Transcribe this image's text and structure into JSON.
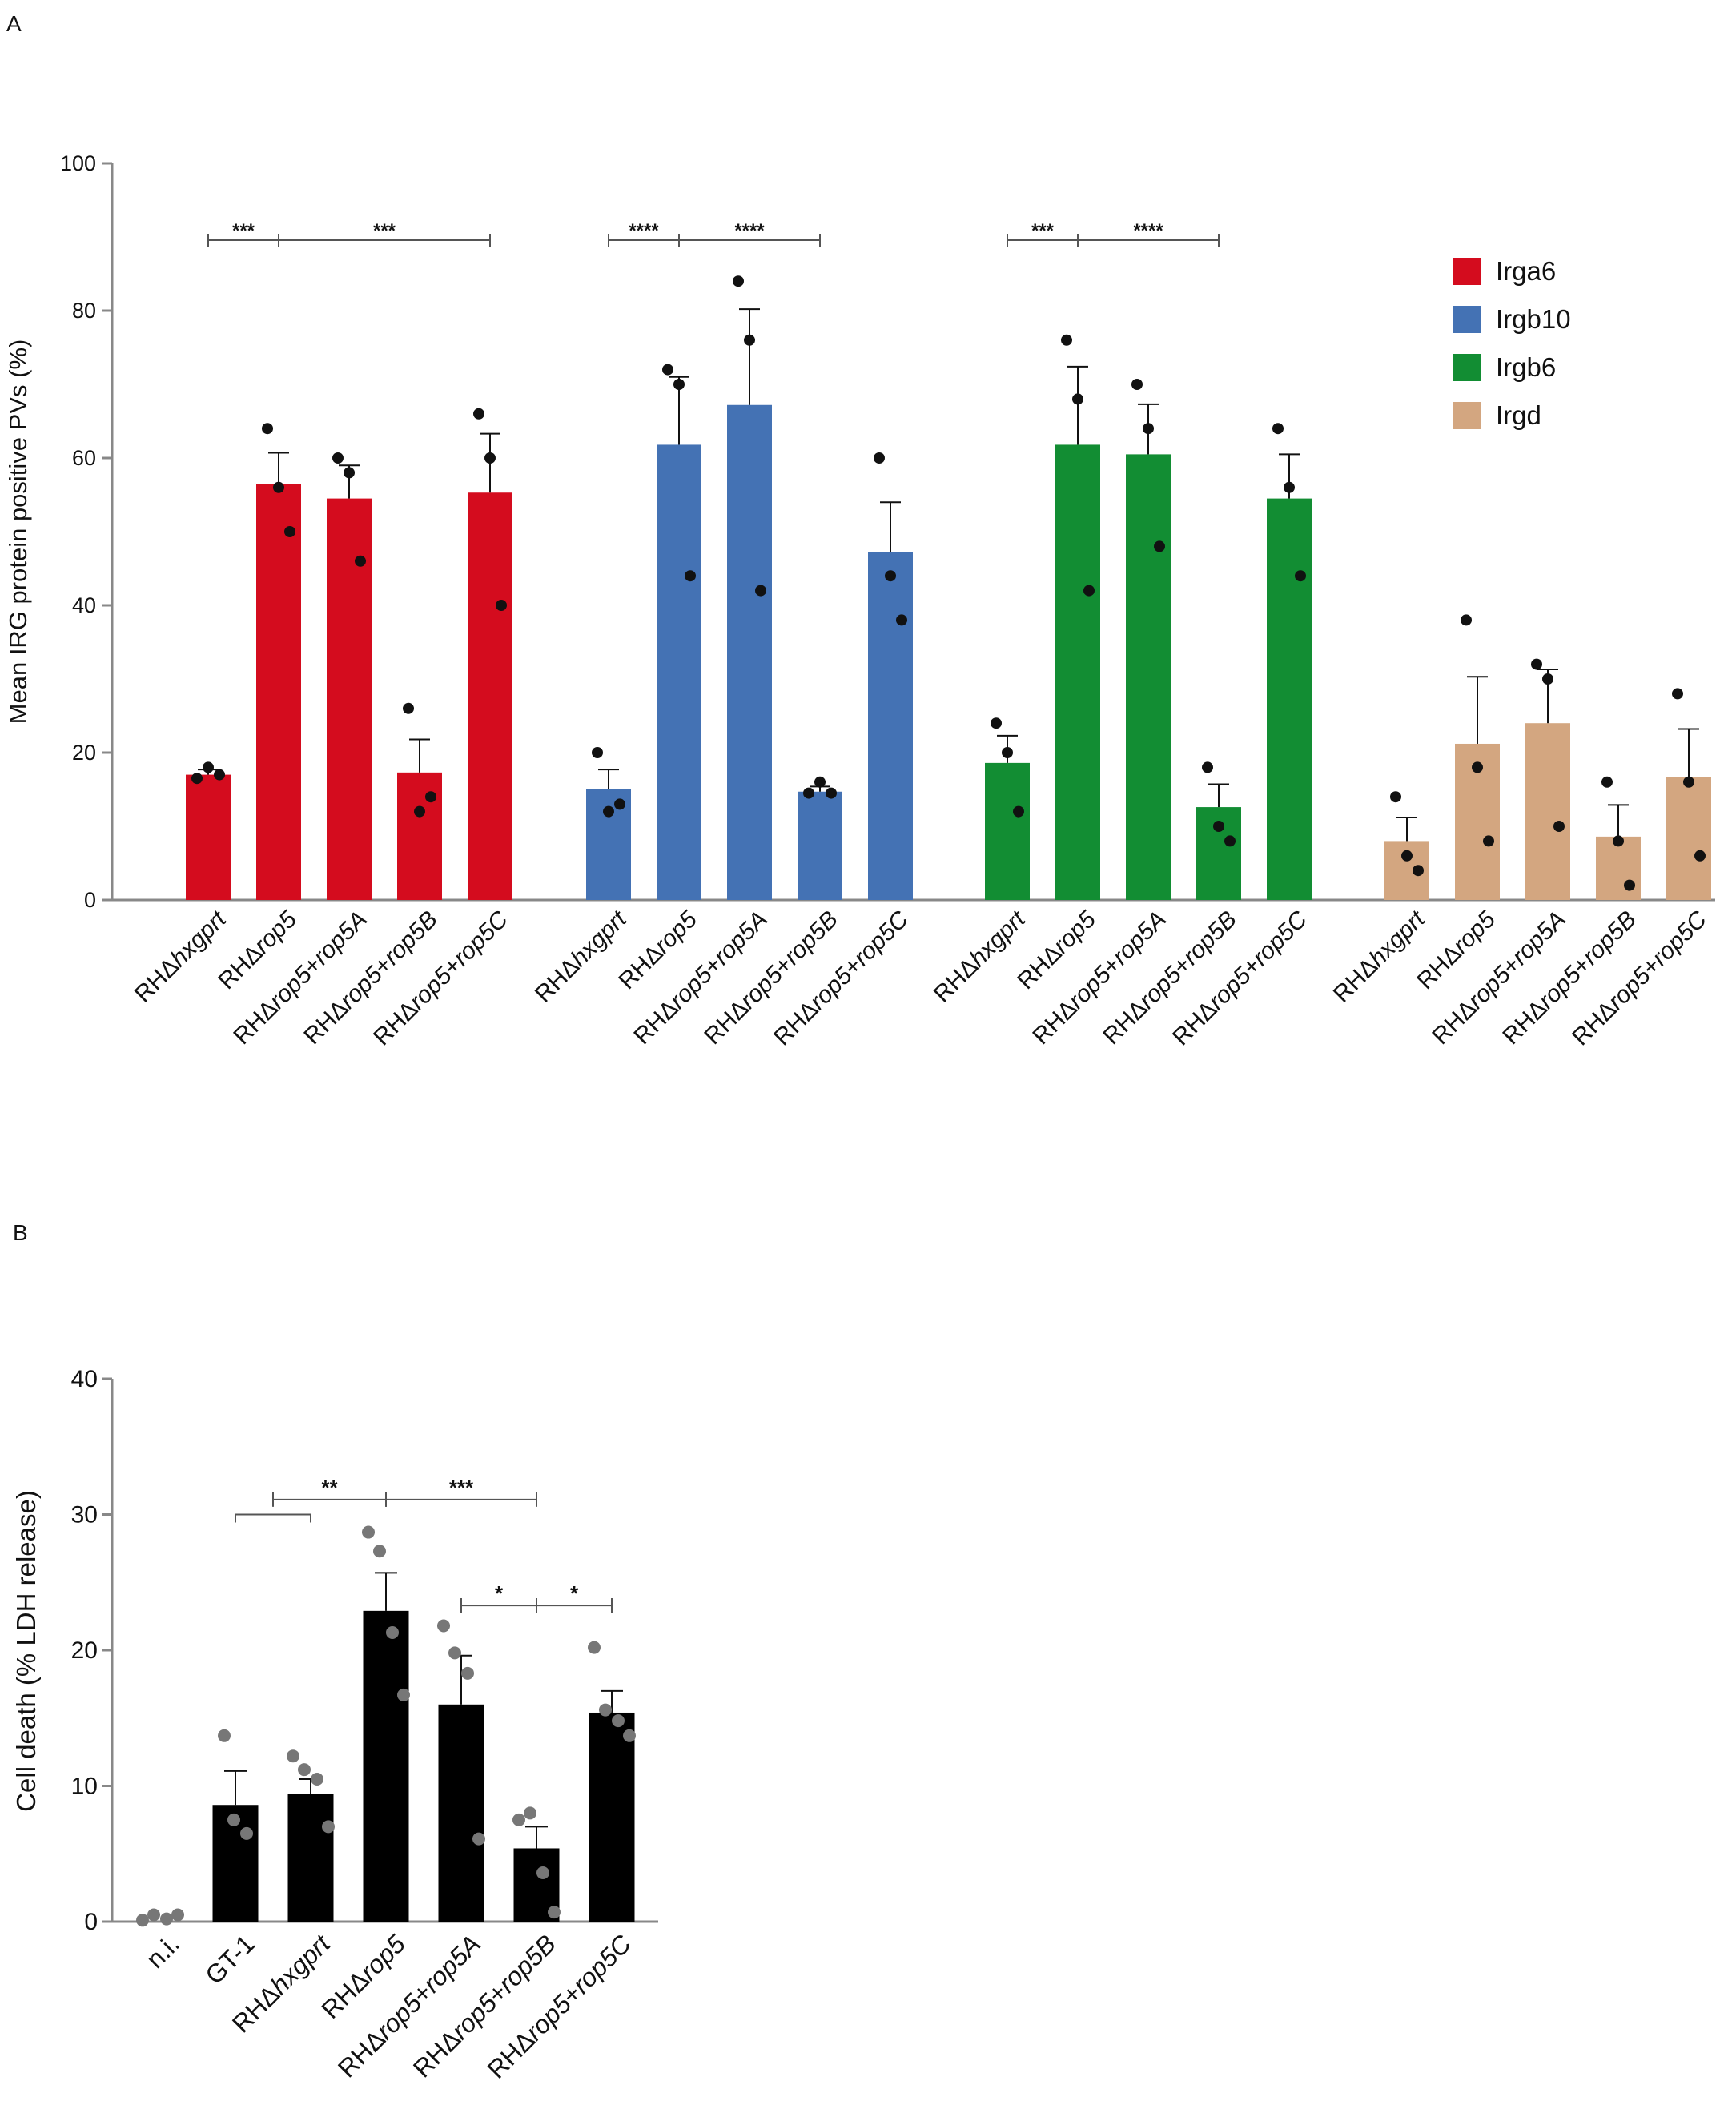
{
  "panels": {
    "a": "A",
    "b": "B"
  },
  "chart_data": [
    {
      "id": "A",
      "type": "bar",
      "ylabel": "Mean IRG protein positive PVs (%)",
      "ylim": [
        0,
        100
      ],
      "yticks": [
        0,
        20,
        40,
        60,
        80,
        100
      ],
      "legend_position": "top-right",
      "groups": [
        {
          "name": "Irga6",
          "color": "#d40c1e",
          "bars": [
            {
              "label": "RHΔhxgprt",
              "value": 17,
              "sem": 0.7,
              "points": [
                16.5,
                18,
                17
              ]
            },
            {
              "label": "RHΔrop5",
              "value": 56.5,
              "sem": 4.2,
              "points": [
                64,
                56,
                50
              ]
            },
            {
              "label": "RHΔrop5+rop5A",
              "value": 54.5,
              "sem": 4.5,
              "points": [
                60,
                58,
                46
              ]
            },
            {
              "label": "RHΔrop5+rop5B",
              "value": 17.3,
              "sem": 4.5,
              "points": [
                26,
                12,
                14
              ]
            },
            {
              "label": "RHΔrop5+rop5C",
              "value": 55.3,
              "sem": 8,
              "points": [
                66,
                60,
                40
              ]
            }
          ],
          "significance": [
            {
              "from": 0,
              "to": 1,
              "label": "***"
            },
            {
              "from": 1,
              "to": 4,
              "label": "***"
            }
          ]
        },
        {
          "name": "Irgb10",
          "color": "#4472b4",
          "bars": [
            {
              "label": "RHΔhxgprt",
              "value": 15,
              "sem": 2.7,
              "points": [
                20,
                12,
                13
              ]
            },
            {
              "label": "RHΔrop5",
              "value": 61.8,
              "sem": 9.2,
              "points": [
                72,
                70,
                44
              ]
            },
            {
              "label": "RHΔrop5+rop5A",
              "value": 67.2,
              "sem": 13,
              "points": [
                84,
                76,
                42
              ]
            },
            {
              "label": "RHΔrop5+rop5B",
              "value": 14.7,
              "sem": 0.7,
              "points": [
                14.5,
                16,
                14.5
              ]
            },
            {
              "label": "RHΔrop5+rop5C",
              "value": 47.2,
              "sem": 6.8,
              "points": [
                60,
                44,
                38
              ]
            }
          ],
          "significance": [
            {
              "from": 0,
              "to": 1,
              "label": "****"
            },
            {
              "from": 1,
              "to": 3,
              "label": "****"
            }
          ]
        },
        {
          "name": "Irgb6",
          "color": "#128d33",
          "bars": [
            {
              "label": "RHΔhxgprt",
              "value": 18.6,
              "sem": 3.7,
              "points": [
                24,
                20,
                12
              ]
            },
            {
              "label": "RHΔrop5",
              "value": 61.8,
              "sem": 10.6,
              "points": [
                76,
                68,
                42
              ]
            },
            {
              "label": "RHΔrop5+rop5A",
              "value": 60.5,
              "sem": 6.8,
              "points": [
                70,
                64,
                48
              ]
            },
            {
              "label": "RHΔrop5+rop5B",
              "value": 12.6,
              "sem": 3.1,
              "points": [
                18,
                10,
                8
              ]
            },
            {
              "label": "RHΔrop5+rop5C",
              "value": 54.5,
              "sem": 6,
              "points": [
                64,
                56,
                44
              ]
            }
          ],
          "significance": [
            {
              "from": 0,
              "to": 1,
              "label": "***"
            },
            {
              "from": 1,
              "to": 3,
              "label": "****"
            }
          ]
        },
        {
          "name": "Irgd",
          "color": "#d3a680",
          "bars": [
            {
              "label": "RHΔhxgprt",
              "value": 8,
              "sem": 3.2,
              "points": [
                14,
                6,
                4
              ]
            },
            {
              "label": "RHΔrop5",
              "value": 21.2,
              "sem": 9.1,
              "points": [
                38,
                18,
                8
              ]
            },
            {
              "label": "RHΔrop5+rop5A",
              "value": 24,
              "sem": 7.3,
              "points": [
                32,
                30,
                10
              ]
            },
            {
              "label": "RHΔrop5+rop5B",
              "value": 8.6,
              "sem": 4.3,
              "points": [
                16,
                8,
                2
              ]
            },
            {
              "label": "RHΔrop5+rop5C",
              "value": 16.7,
              "sem": 6.5,
              "points": [
                28,
                16,
                6
              ]
            }
          ],
          "significance": []
        }
      ]
    },
    {
      "id": "B",
      "type": "bar",
      "ylabel": "Cell death (% LDH release)",
      "ylim": [
        0,
        40
      ],
      "yticks": [
        0,
        10,
        20,
        30,
        40
      ],
      "color": "#000000",
      "point_color": "#777777",
      "bars": [
        {
          "label": "n.i.",
          "value": 0.2,
          "sem": 0,
          "points": [
            0.1,
            0.5,
            0.2,
            0.5
          ]
        },
        {
          "label": "GT-1",
          "value": 8.6,
          "sem": 2.5,
          "points": [
            13.7,
            7.5,
            6.5
          ]
        },
        {
          "label": "RHΔhxgprt",
          "value": 9.4,
          "sem": 1.1,
          "points": [
            12.2,
            11.2,
            10.5,
            7
          ]
        },
        {
          "label": "RHΔrop5",
          "value": 22.9,
          "sem": 2.8,
          "points": [
            28.7,
            27.3,
            21.3,
            16.7
          ]
        },
        {
          "label": "RHΔrop5+rop5A",
          "value": 16,
          "sem": 3.6,
          "points": [
            21.8,
            19.8,
            18.3,
            6.1
          ]
        },
        {
          "label": "RHΔrop5+rop5B",
          "value": 5.4,
          "sem": 1.6,
          "points": [
            7.5,
            8,
            3.6,
            0.7
          ]
        },
        {
          "label": "RHΔrop5+rop5C",
          "value": 15.4,
          "sem": 1.6,
          "points": [
            20.2,
            15.6,
            14.8,
            13.7
          ]
        }
      ],
      "significance": [
        {
          "from": 1,
          "to": 2,
          "label": "",
          "level": 30
        },
        {
          "from": 1.5,
          "to": 3,
          "label": "**",
          "level": 31.1
        },
        {
          "from": 3,
          "to": 5,
          "label": "***",
          "level": 31.1
        },
        {
          "from": 4,
          "to": 5,
          "label": "*",
          "level": 23.3
        },
        {
          "from": 5,
          "to": 6,
          "label": "*",
          "level": 23.3
        }
      ]
    }
  ]
}
